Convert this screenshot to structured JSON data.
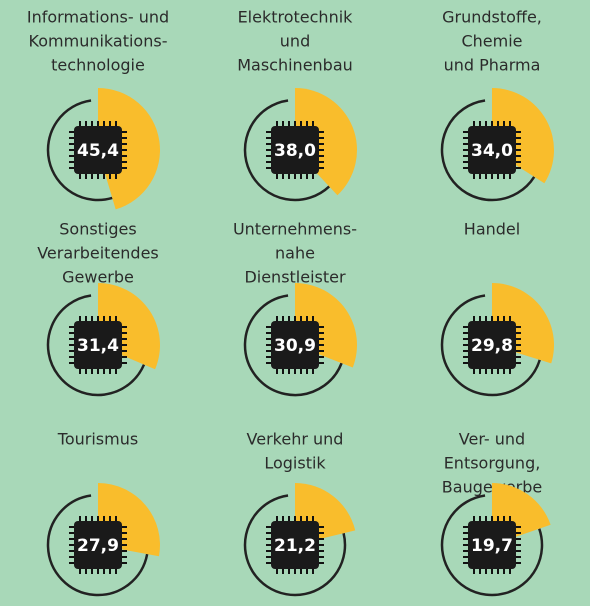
{
  "chart_data": {
    "type": "radial",
    "color": "#f9bd2c",
    "categories": [
      [
        "Informations- und",
        "Kommunikations-",
        "technologie"
      ],
      [
        "Elektrotechnik",
        "und",
        "Maschinenbau"
      ],
      [
        "Grundstoffe,",
        "Chemie",
        "und Pharma"
      ],
      [
        "Sonstiges",
        "Verarbeitendes",
        "Gewerbe"
      ],
      [
        "Unternehmens-",
        "nahe",
        "Dienstleister"
      ],
      [
        "Handel"
      ],
      [
        "Tourismus"
      ],
      [
        "Verkehr und",
        "Logistik"
      ],
      [
        "Ver- und",
        "Entsorgung,",
        "Baugewerbe"
      ]
    ],
    "values": [
      45.4,
      38.0,
      34.0,
      31.4,
      30.9,
      29.8,
      27.9,
      21.2,
      19.7
    ],
    "value_labels": [
      "45,4",
      "38,0",
      "34,0",
      "31,4",
      "30,9",
      "29,8",
      "27,9",
      "21,2",
      "19,7"
    ]
  }
}
